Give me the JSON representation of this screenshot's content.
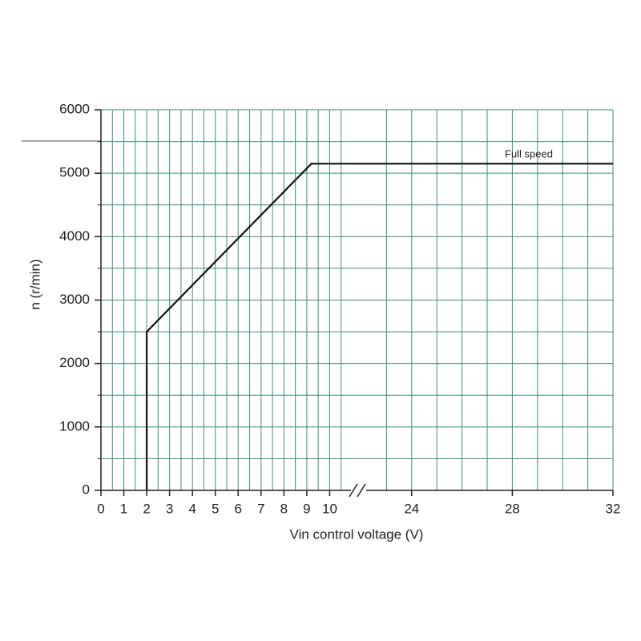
{
  "chart_data": {
    "type": "line",
    "x_label": "Vin control voltage (V)",
    "y_label": "n (r/min)",
    "annotation": "Full speed",
    "x_segments": [
      [
        0,
        11
      ],
      [
        22,
        32
      ]
    ],
    "xticks": [
      0,
      1,
      2,
      3,
      4,
      5,
      6,
      7,
      8,
      9,
      10,
      24,
      28,
      32
    ],
    "xgrid": [
      0.5,
      1,
      1.5,
      2,
      2.5,
      3,
      3.5,
      4,
      4.5,
      5,
      5.5,
      6,
      6.5,
      7,
      7.5,
      8,
      8.5,
      9,
      9.5,
      10,
      10.5,
      23,
      24,
      25,
      26,
      27,
      28,
      29,
      30,
      31,
      32
    ],
    "ylim": [
      0,
      6000
    ],
    "yticks": [
      0,
      1000,
      2000,
      3000,
      4000,
      5000,
      6000
    ],
    "ygrid": [
      500,
      1000,
      1500,
      2000,
      2500,
      3000,
      3500,
      4000,
      4500,
      5000,
      5500,
      6000
    ],
    "grid": true,
    "grid_color": "#3f8f6b",
    "series": [
      {
        "color": "#111111",
        "x": [
          2,
          2,
          9.2,
          32
        ],
        "values": [
          0,
          2500,
          5150,
          5150
        ]
      }
    ]
  }
}
